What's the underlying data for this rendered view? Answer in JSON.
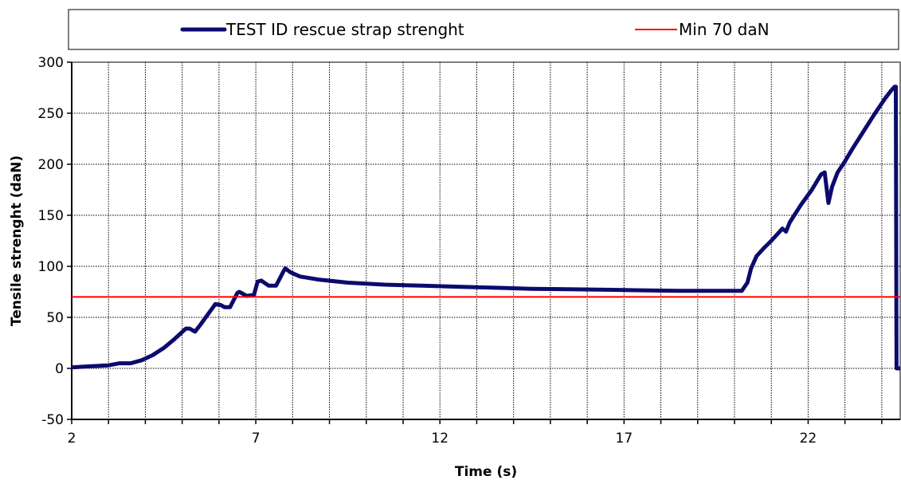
{
  "chart_data": {
    "type": "line",
    "title": "",
    "xlabel": "Time (s)",
    "ylabel": "Tensile strenght (daN)",
    "xlim": [
      2,
      24.5
    ],
    "ylim": [
      -50,
      300
    ],
    "x_ticks": [
      2,
      7,
      12,
      17,
      22
    ],
    "x_minor_step": 1,
    "y_ticks": [
      -50,
      0,
      50,
      100,
      150,
      200,
      250,
      300
    ],
    "grid": true,
    "legend_position": "top",
    "series": [
      {
        "name": "TEST ID rescue strap strenght",
        "color": "#0b0b6e",
        "points": [
          [
            2.0,
            1
          ],
          [
            2.5,
            2
          ],
          [
            3.0,
            3
          ],
          [
            3.3,
            5
          ],
          [
            3.6,
            5
          ],
          [
            3.9,
            8
          ],
          [
            4.2,
            13
          ],
          [
            4.5,
            20
          ],
          [
            4.8,
            29
          ],
          [
            5.1,
            39
          ],
          [
            5.2,
            39
          ],
          [
            5.35,
            36
          ],
          [
            5.5,
            43
          ],
          [
            5.7,
            53
          ],
          [
            5.9,
            63
          ],
          [
            6.05,
            62
          ],
          [
            6.15,
            60
          ],
          [
            6.3,
            60
          ],
          [
            6.5,
            74
          ],
          [
            6.55,
            75
          ],
          [
            6.75,
            71
          ],
          [
            6.95,
            72
          ],
          [
            7.05,
            85
          ],
          [
            7.15,
            86
          ],
          [
            7.35,
            81
          ],
          [
            7.55,
            81
          ],
          [
            7.75,
            95
          ],
          [
            7.8,
            98
          ],
          [
            7.95,
            94
          ],
          [
            8.2,
            90
          ],
          [
            8.7,
            87
          ],
          [
            9.5,
            84
          ],
          [
            10.5,
            82
          ],
          [
            11.5,
            81
          ],
          [
            12.5,
            80
          ],
          [
            13.5,
            79
          ],
          [
            14.5,
            78
          ],
          [
            15.5,
            77.5
          ],
          [
            16.5,
            77
          ],
          [
            17.5,
            76.5
          ],
          [
            18.5,
            76
          ],
          [
            19.5,
            76
          ],
          [
            20.2,
            76
          ],
          [
            20.35,
            84
          ],
          [
            20.45,
            98
          ],
          [
            20.6,
            110
          ],
          [
            20.8,
            118
          ],
          [
            21.0,
            125
          ],
          [
            21.2,
            133
          ],
          [
            21.3,
            137
          ],
          [
            21.4,
            134
          ],
          [
            21.5,
            143
          ],
          [
            21.8,
            160
          ],
          [
            22.1,
            175
          ],
          [
            22.35,
            190
          ],
          [
            22.45,
            192
          ],
          [
            22.55,
            162
          ],
          [
            22.65,
            178
          ],
          [
            22.8,
            192
          ],
          [
            23.0,
            203
          ],
          [
            23.2,
            215
          ],
          [
            23.5,
            232
          ],
          [
            23.8,
            249
          ],
          [
            24.1,
            265
          ],
          [
            24.25,
            272
          ],
          [
            24.35,
            276
          ],
          [
            24.38,
            276
          ],
          [
            24.4,
            0
          ],
          [
            25.0,
            0
          ],
          [
            25.5,
            0
          ]
        ]
      },
      {
        "name": "Min 70 daN",
        "color": "#ff0000",
        "points": [
          [
            2,
            70
          ],
          [
            26.5,
            70
          ]
        ]
      }
    ]
  }
}
